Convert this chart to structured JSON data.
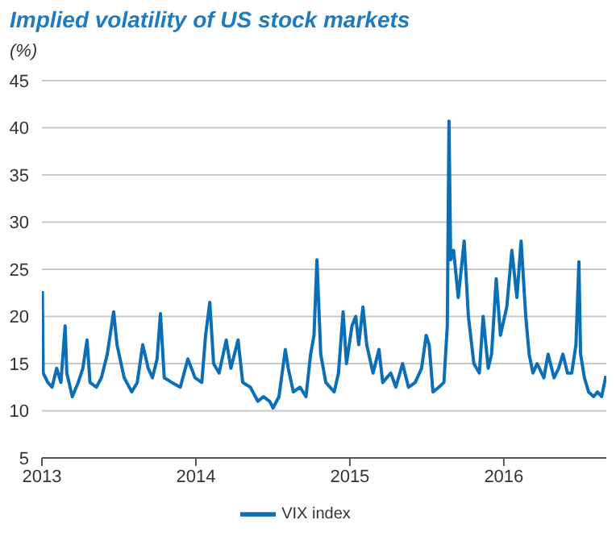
{
  "chart_data": {
    "type": "line",
    "title": "Implied volatility of US stock markets",
    "ylabel": "(%)",
    "x": [
      "2013-01-02",
      "2013-01-04",
      "2013-01-15",
      "2013-01-25",
      "2013-02-05",
      "2013-02-15",
      "2013-02-25",
      "2013-03-01",
      "2013-03-14",
      "2013-03-28",
      "2013-04-08",
      "2013-04-18",
      "2013-04-25",
      "2013-05-10",
      "2013-05-22",
      "2013-06-05",
      "2013-06-20",
      "2013-06-28",
      "2013-07-15",
      "2013-08-02",
      "2013-08-15",
      "2013-08-28",
      "2013-09-10",
      "2013-09-20",
      "2013-10-01",
      "2013-10-09",
      "2013-10-18",
      "2013-11-05",
      "2013-11-25",
      "2013-12-13",
      "2013-12-30",
      "2014-01-15",
      "2014-01-24",
      "2014-02-03",
      "2014-02-12",
      "2014-02-25",
      "2014-03-14",
      "2014-03-25",
      "2014-04-11",
      "2014-04-22",
      "2014-05-10",
      "2014-05-28",
      "2014-06-10",
      "2014-06-25",
      "2014-07-03",
      "2014-07-17",
      "2014-08-01",
      "2014-08-08",
      "2014-08-20",
      "2014-09-05",
      "2014-09-19",
      "2014-09-30",
      "2014-10-08",
      "2014-10-15",
      "2014-10-24",
      "2014-11-05",
      "2014-11-25",
      "2014-12-05",
      "2014-12-16",
      "2014-12-24",
      "2015-01-06",
      "2015-01-15",
      "2015-01-22",
      "2015-02-01",
      "2015-02-10",
      "2015-02-25",
      "2015-03-11",
      "2015-03-20",
      "2015-04-08",
      "2015-04-20",
      "2015-05-06",
      "2015-05-20",
      "2015-06-05",
      "2015-06-20",
      "2015-07-01",
      "2015-07-08",
      "2015-07-17",
      "2015-07-31",
      "2015-08-12",
      "2015-08-20",
      "2015-08-24",
      "2015-08-28",
      "2015-09-04",
      "2015-09-15",
      "2015-09-29",
      "2015-10-09",
      "2015-10-22",
      "2015-11-04",
      "2015-11-13",
      "2015-11-25",
      "2015-12-03",
      "2015-12-14",
      "2015-12-24",
      "2016-01-08",
      "2016-01-20",
      "2016-02-01",
      "2016-02-11",
      "2016-02-22",
      "2016-03-01",
      "2016-03-10",
      "2016-03-20",
      "2016-04-05",
      "2016-04-15",
      "2016-04-29",
      "2016-05-10",
      "2016-05-20",
      "2016-05-31",
      "2016-06-10",
      "2016-06-20",
      "2016-06-27",
      "2016-07-01",
      "2016-07-10",
      "2016-07-20",
      "2016-08-01",
      "2016-08-10",
      "2016-08-20",
      "2016-08-30"
    ],
    "series": [
      {
        "name": "VIX index",
        "color": "#0a6fb7",
        "values": [
          22.7,
          14,
          13,
          12.5,
          14.5,
          13,
          19,
          14,
          11.5,
          13,
          14.5,
          17.5,
          13,
          12.5,
          13.5,
          16,
          20.5,
          17,
          13.5,
          12,
          13,
          17,
          14.5,
          13.5,
          15.5,
          20.3,
          13.5,
          13,
          12.5,
          15.5,
          13.5,
          13,
          18,
          21.5,
          15,
          14,
          17.5,
          14.5,
          17.5,
          13,
          12.5,
          11,
          11.5,
          11,
          10.3,
          11.5,
          16.5,
          14.5,
          12,
          12.5,
          11.5,
          16,
          18,
          26,
          16,
          13,
          12,
          14,
          20.5,
          15,
          19,
          20,
          17,
          21,
          17,
          14,
          16.5,
          13,
          14,
          12.5,
          15,
          12.5,
          13,
          14.5,
          18,
          17,
          12,
          12.5,
          13,
          19,
          40.7,
          26,
          27,
          22,
          28,
          20,
          15,
          14,
          20,
          14.5,
          16,
          24,
          18,
          21,
          27,
          22,
          28,
          20,
          16,
          14,
          15,
          13.5,
          16,
          13.5,
          14.5,
          16,
          14,
          14,
          17,
          25.8,
          16,
          13.5,
          12,
          11.5,
          12,
          11.5,
          13.7
        ]
      }
    ],
    "xlim": [
      "2013-01-01",
      "2016-08-31"
    ],
    "xticks": [
      {
        "value": "2013-01-01",
        "label": "2013"
      },
      {
        "value": "2014-01-01",
        "label": "2014"
      },
      {
        "value": "2015-01-01",
        "label": "2015"
      },
      {
        "value": "2016-01-01",
        "label": "2016"
      }
    ],
    "ylim": [
      5,
      45
    ],
    "yticks": [
      5,
      10,
      15,
      20,
      25,
      30,
      35,
      40,
      45
    ],
    "grid": "y",
    "legend": "bottom",
    "marker": "none",
    "line_style": "solid"
  }
}
